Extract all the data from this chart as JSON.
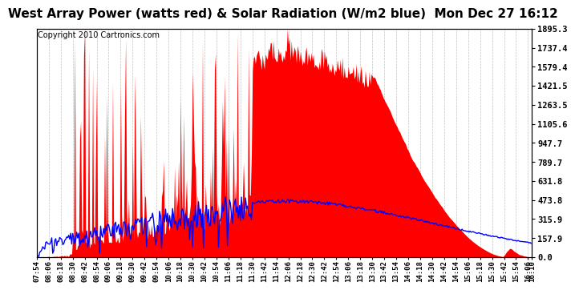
{
  "title": "West Array Power (watts red) & Solar Radiation (W/m2 blue)  Mon Dec 27 16:12",
  "copyright": "Copyright 2010 Cartronics.com",
  "yticks": [
    0.0,
    157.9,
    315.9,
    473.8,
    631.8,
    789.7,
    947.7,
    1105.6,
    1263.5,
    1421.5,
    1579.4,
    1737.4,
    1895.3
  ],
  "ymax": 1895.3,
  "ymin": 0.0,
  "bg_color": "#ffffff",
  "plot_bg": "#ffffff",
  "grid_color": "#bbbbbb",
  "red_color": "#ff0000",
  "blue_color": "#0000ff",
  "title_fontsize": 11,
  "copyright_fontsize": 7,
  "xtick_fontsize": 6.5,
  "ytick_fontsize": 7.5,
  "xticks": [
    "07:54",
    "08:06",
    "08:18",
    "08:30",
    "08:42",
    "08:54",
    "09:06",
    "09:18",
    "09:30",
    "09:42",
    "09:54",
    "10:06",
    "10:18",
    "10:30",
    "10:42",
    "10:54",
    "11:06",
    "11:18",
    "11:30",
    "11:42",
    "11:54",
    "12:06",
    "12:18",
    "12:30",
    "12:42",
    "12:54",
    "13:06",
    "13:18",
    "13:30",
    "13:42",
    "13:54",
    "14:06",
    "14:18",
    "14:30",
    "14:42",
    "14:54",
    "15:06",
    "15:18",
    "15:30",
    "15:42",
    "15:54",
    "16:06",
    "16:10"
  ]
}
